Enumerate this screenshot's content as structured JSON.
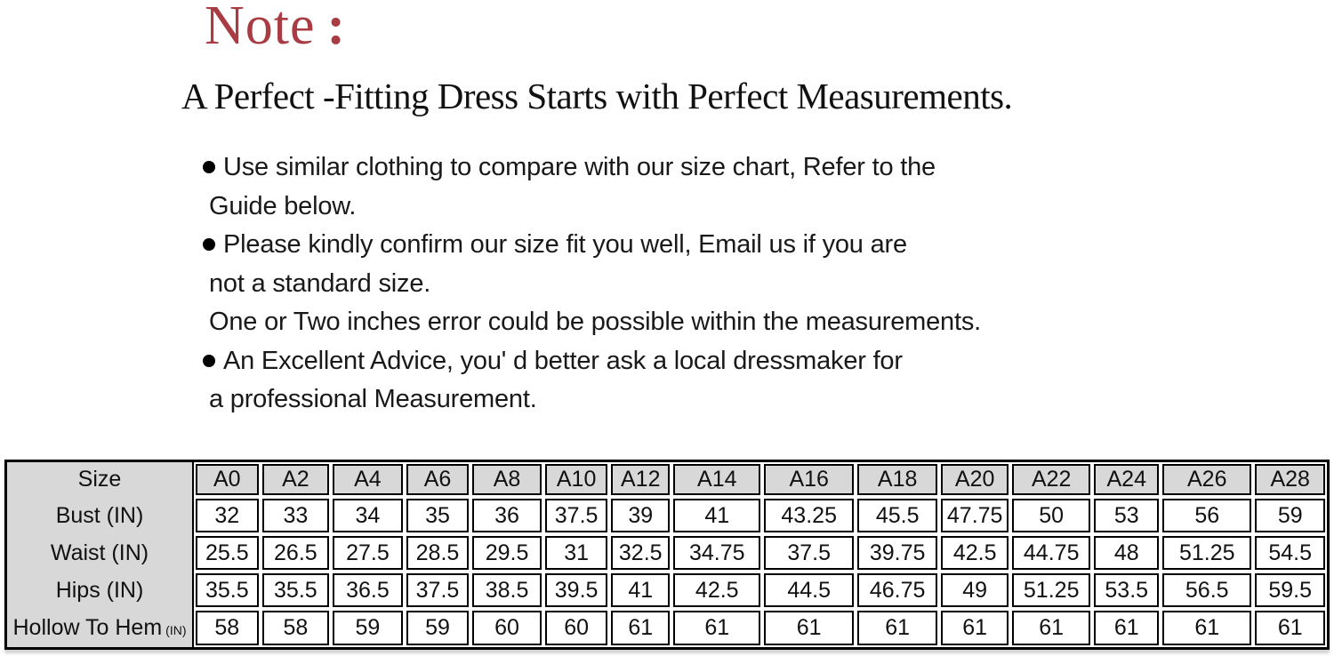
{
  "note": {
    "title": "Note",
    "colon": ":",
    "heading": "A Perfect -Fitting Dress Starts with Perfect Measurements."
  },
  "bullets": [
    {
      "first_line": "Use similar clothing to compare with our size chart, Refer to the",
      "continuation_lines": [
        "Guide below."
      ]
    },
    {
      "first_line": "Please kindly confirm our size fit you well, Email us if you are",
      "continuation_lines": [
        "not a standard size.",
        "One or Two inches error could be possible within the measurements."
      ]
    },
    {
      "first_line": "An Excellent Advice, you' d better ask a local dressmaker for",
      "continuation_lines": [
        "a professional Measurement."
      ]
    }
  ],
  "size_chart": {
    "first_column": [
      {
        "label": "Size"
      },
      {
        "label": "Bust (IN)"
      },
      {
        "label": "Waist (IN)"
      },
      {
        "label": "Hips (IN)"
      },
      {
        "label": "Hollow To Hem",
        "unit": "(IN)"
      }
    ],
    "columns": [
      "A0",
      "A2",
      "A4",
      "A6",
      "A8",
      "A10",
      "A12",
      "A14",
      "A16",
      "A18",
      "A20",
      "A22",
      "A24",
      "A26",
      "A28"
    ],
    "data_rows": [
      {
        "name": "Bust (IN)",
        "values": [
          "32",
          "33",
          "34",
          "35",
          "36",
          "37.5",
          "39",
          "41",
          "43.25",
          "45.5",
          "47.75",
          "50",
          "53",
          "56",
          "59"
        ]
      },
      {
        "name": "Waist (IN)",
        "values": [
          "25.5",
          "26.5",
          "27.5",
          "28.5",
          "29.5",
          "31",
          "32.5",
          "34.75",
          "37.5",
          "39.75",
          "42.5",
          "44.75",
          "48",
          "51.25",
          "54.5"
        ]
      },
      {
        "name": "Hips (IN)",
        "values": [
          "35.5",
          "35.5",
          "36.5",
          "37.5",
          "38.5",
          "39.5",
          "41",
          "42.5",
          "44.5",
          "46.75",
          "49",
          "51.25",
          "53.5",
          "56.5",
          "59.5"
        ]
      },
      {
        "name": "Hollow To Hem (IN)",
        "values": [
          "58",
          "58",
          "59",
          "59",
          "60",
          "60",
          "61",
          "61",
          "61",
          "61",
          "61",
          "61",
          "61",
          "61",
          "61"
        ]
      }
    ]
  },
  "colors": {
    "note_red": "#a93b43",
    "header_gray": "#d8d8d8",
    "border_black": "#000000",
    "text_black": "#141414"
  }
}
